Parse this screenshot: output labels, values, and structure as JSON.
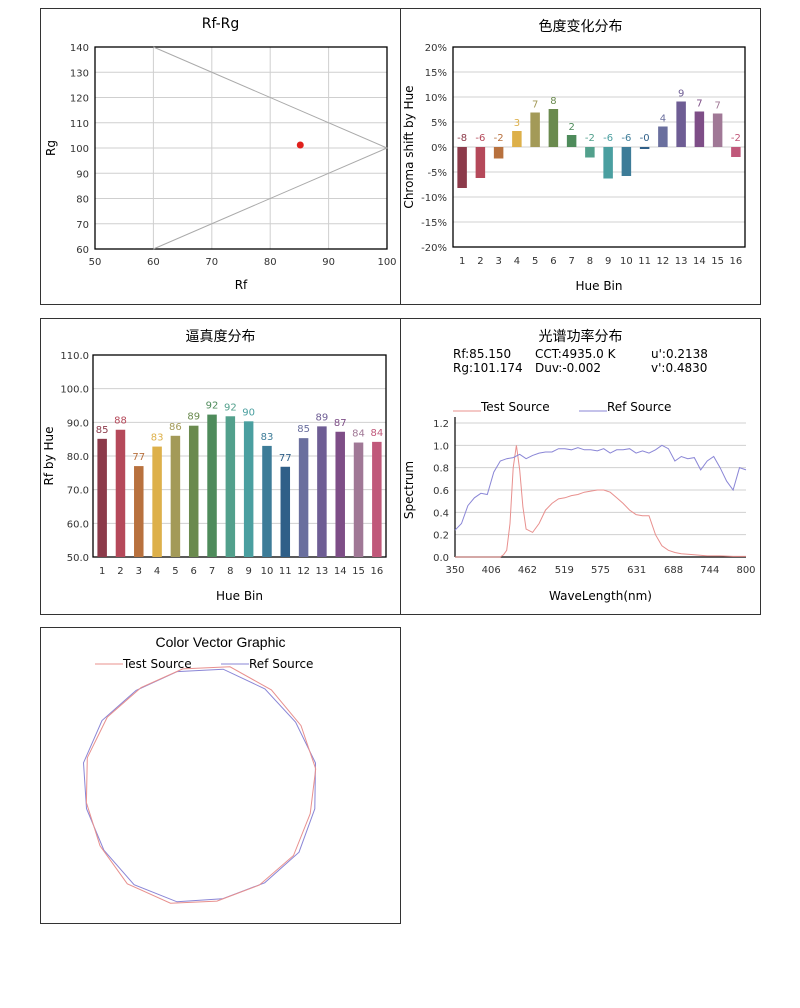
{
  "chart_data": [
    {
      "type": "scatter",
      "title": "Rf-Rg",
      "xlabel": "Rf",
      "ylabel": "Rg",
      "xlim": [
        50,
        100
      ],
      "ylim": [
        60,
        140
      ],
      "xticks": [
        "50",
        "60",
        "70",
        "80",
        "90",
        "100"
      ],
      "yticks": [
        "60",
        "70",
        "80",
        "90",
        "100",
        "110",
        "120",
        "130",
        "140"
      ],
      "point": {
        "x": 85.15,
        "y": 101.174,
        "color": "#e0201c"
      },
      "grid": true
    },
    {
      "type": "bar",
      "title": "色度变化分布",
      "xlabel": "Hue Bin",
      "ylabel": "Chroma shift by Hue",
      "ylim": [
        -20,
        20
      ],
      "yticks": [
        "-20%",
        "-15%",
        "-10%",
        "-5%",
        "0%",
        "5%",
        "10%",
        "15%",
        "20%"
      ],
      "categories": [
        "1",
        "2",
        "3",
        "4",
        "5",
        "6",
        "7",
        "8",
        "9",
        "10",
        "11",
        "12",
        "13",
        "14",
        "15",
        "16"
      ],
      "values": [
        -8.2,
        -6.2,
        -2.3,
        3.2,
        6.9,
        7.6,
        2.4,
        -2.1,
        -6.3,
        -5.8,
        -0.4,
        4.1,
        9.1,
        7.1,
        6.7,
        -2.0
      ],
      "labels": [
        "-8",
        "-6",
        "-2",
        "3",
        "7",
        "8",
        "2",
        "-2",
        "-6",
        "-6",
        "-0",
        "4",
        "9",
        "7",
        "7",
        "-2"
      ]
    },
    {
      "type": "bar",
      "title": "逼真度分布",
      "xlabel": "Hue Bin",
      "ylabel": "Rf by Hue",
      "ylim": [
        50,
        110
      ],
      "yticks": [
        "50.0",
        "60.0",
        "70.0",
        "80.0",
        "90.0",
        "100.0",
        "110.0"
      ],
      "categories": [
        "1",
        "2",
        "3",
        "4",
        "5",
        "6",
        "7",
        "8",
        "9",
        "10",
        "11",
        "12",
        "13",
        "14",
        "15",
        "16"
      ],
      "values": [
        85.1,
        87.8,
        77.0,
        82.8,
        86.0,
        89.0,
        92.3,
        91.8,
        90.3,
        83.0,
        76.8,
        85.3,
        88.8,
        87.2,
        84.0,
        84.2
      ],
      "labels": [
        "85",
        "88",
        "77",
        "83",
        "86",
        "89",
        "92",
        "92",
        "90",
        "83",
        "77",
        "85",
        "89",
        "87",
        "84",
        "84"
      ]
    },
    {
      "type": "line",
      "title": "光谱功率分布",
      "xlabel": "WaveLength(nm)",
      "ylabel": "Spectrum",
      "xlim": [
        350,
        800
      ],
      "ylim": [
        0,
        1.2
      ],
      "xticks": [
        "350",
        "406",
        "462",
        "519",
        "575",
        "631",
        "688",
        "744",
        "800"
      ],
      "yticks": [
        "0.0",
        "0.2",
        "0.4",
        "0.6",
        "0.8",
        "1.0",
        "1.2"
      ],
      "series": [
        {
          "name": "Test Source",
          "color": "#e8908e",
          "x": [
            350,
            380,
            400,
            410,
            420,
            425,
            430,
            435,
            440,
            445,
            450,
            455,
            460,
            470,
            480,
            490,
            500,
            510,
            520,
            530,
            540,
            550,
            560,
            570,
            580,
            590,
            600,
            610,
            620,
            630,
            640,
            650,
            660,
            670,
            680,
            690,
            700,
            720,
            740,
            760,
            780,
            800
          ],
          "y": [
            0,
            0,
            0,
            0,
            0,
            0.02,
            0.06,
            0.3,
            0.8,
            1.0,
            0.78,
            0.45,
            0.25,
            0.22,
            0.3,
            0.42,
            0.48,
            0.52,
            0.53,
            0.55,
            0.56,
            0.58,
            0.59,
            0.6,
            0.6,
            0.58,
            0.53,
            0.48,
            0.42,
            0.38,
            0.37,
            0.37,
            0.2,
            0.1,
            0.06,
            0.04,
            0.03,
            0.02,
            0.01,
            0.01,
            0.005,
            0.005
          ]
        },
        {
          "name": "Ref Source",
          "color": "#8a86d6",
          "x": [
            350,
            360,
            370,
            380,
            390,
            400,
            410,
            420,
            430,
            440,
            450,
            460,
            470,
            480,
            490,
            500,
            510,
            520,
            530,
            540,
            550,
            560,
            570,
            580,
            590,
            600,
            610,
            620,
            630,
            640,
            650,
            660,
            670,
            680,
            690,
            700,
            710,
            720,
            730,
            740,
            750,
            760,
            770,
            780,
            790,
            800
          ],
          "y": [
            0.24,
            0.3,
            0.46,
            0.53,
            0.57,
            0.56,
            0.76,
            0.86,
            0.88,
            0.89,
            0.92,
            0.88,
            0.91,
            0.93,
            0.94,
            0.94,
            0.97,
            0.97,
            0.96,
            0.98,
            0.96,
            0.96,
            0.95,
            0.97,
            0.93,
            0.96,
            0.96,
            0.97,
            0.93,
            0.95,
            0.93,
            0.96,
            1.0,
            0.97,
            0.86,
            0.9,
            0.88,
            0.89,
            0.78,
            0.86,
            0.9,
            0.8,
            0.68,
            0.6,
            0.8,
            0.78
          ]
        }
      ]
    },
    {
      "type": "line",
      "title": "Color Vector Graphic",
      "series": [
        {
          "name": "Test Source",
          "color": "#e8908e"
        },
        {
          "name": "Ref Source",
          "color": "#8a86d6"
        }
      ]
    }
  ],
  "spectrum_info": {
    "rf": "Rf:85.150",
    "cct": "CCT:4935.0 K",
    "u_prime": "u':0.2138",
    "rg": "Rg:101.174",
    "duv": "Duv:-0.002",
    "v_prime": "v':0.4830"
  },
  "bar_colors": [
    "#8c3a4a",
    "#b5495a",
    "#b8713e",
    "#ddb04a",
    "#a39a58",
    "#6a8a4e",
    "#4e8b5b",
    "#52a08c",
    "#4a9fa0",
    "#3d7c98",
    "#2f5f88",
    "#6a6f9e",
    "#6e5d94",
    "#7e4e87",
    "#a07896",
    "#c0587a"
  ]
}
